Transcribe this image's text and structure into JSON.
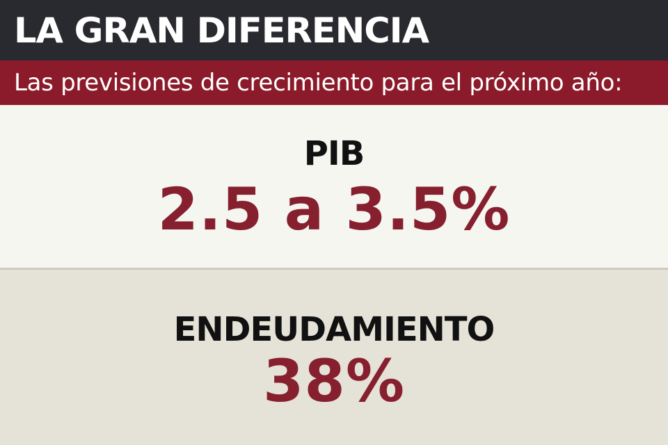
{
  "header": {
    "title": "LA GRAN DIFERENCIA",
    "subtitle": "Las previsiones de crecimiento para el próximo año:"
  },
  "stats": [
    {
      "label": "PIB",
      "value": "2.5 a 3.5%"
    },
    {
      "label": "ENDEUDAMIENTO",
      "value": "38%"
    }
  ],
  "colors": {
    "title_bar": "#292930",
    "subtitle_bar": "#8b1b2a",
    "value_text": "#86202f",
    "top_panel": "#f6f6f0",
    "bottom_panel": "#e5e2d7"
  }
}
